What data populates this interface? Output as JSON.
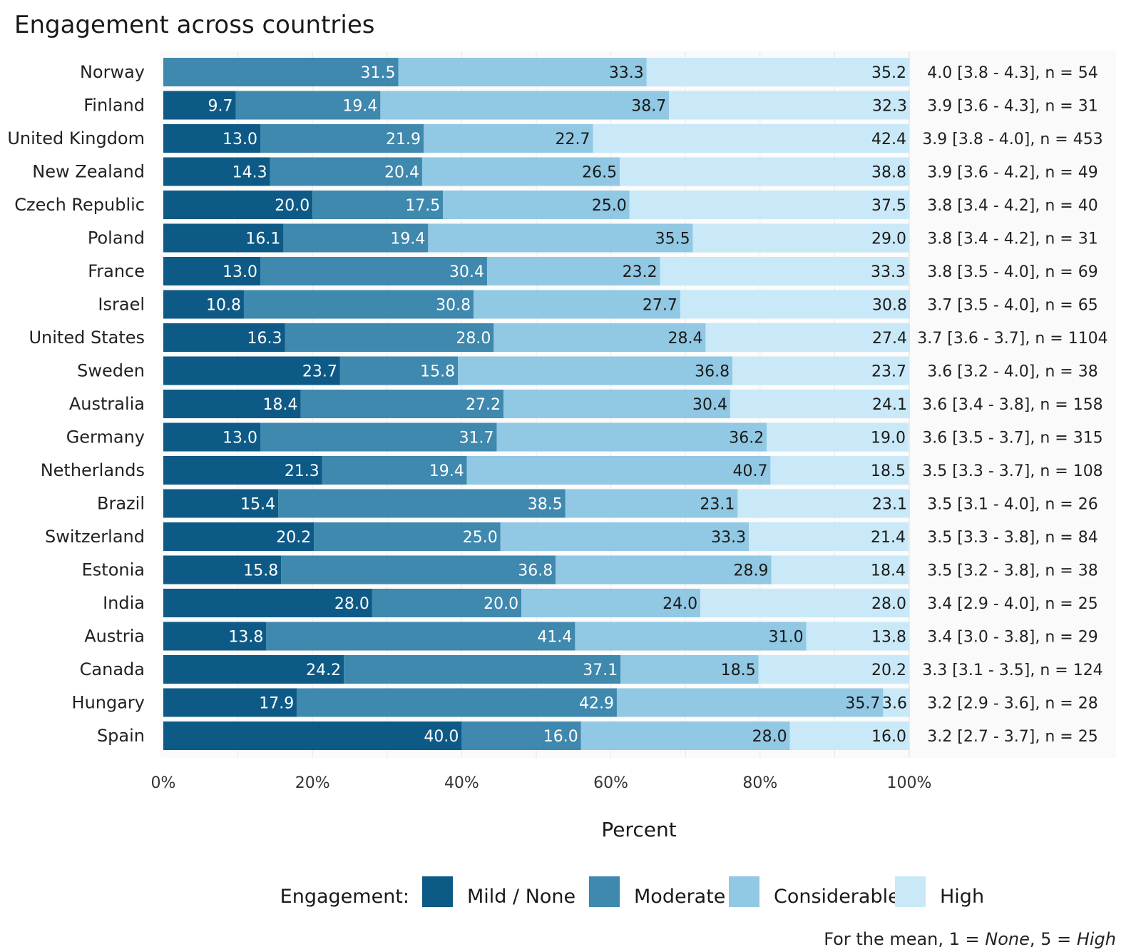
{
  "chart_data": {
    "type": "bar",
    "orientation": "horizontal",
    "stacked": true,
    "title": "Engagement across countries",
    "xlabel": "Percent",
    "ylabel": "",
    "xlim": [
      0,
      100
    ],
    "x_ticks": [
      "0%",
      "20%",
      "40%",
      "60%",
      "80%",
      "100%"
    ],
    "x_tick_values": [
      0,
      20,
      40,
      60,
      80,
      100
    ],
    "categories": [
      "Norway",
      "Finland",
      "United Kingdom",
      "New Zealand",
      "Czech Republic",
      "Poland",
      "France",
      "Israel",
      "United States",
      "Sweden",
      "Australia",
      "Germany",
      "Netherlands",
      "Brazil",
      "Switzerland",
      "Estonia",
      "India",
      "Austria",
      "Canada",
      "Hungary",
      "Spain"
    ],
    "series": [
      {
        "name": "Mild / None",
        "color": "#0e5a86",
        "label_color": "#ffffff",
        "values": [
          0,
          9.7,
          13.0,
          14.3,
          20.0,
          16.1,
          13.0,
          10.8,
          16.3,
          23.7,
          18.4,
          13.0,
          21.3,
          15.4,
          20.2,
          15.8,
          28.0,
          13.8,
          24.2,
          17.9,
          40.0
        ],
        "labels": [
          "",
          "9.7",
          "13.0",
          "14.3",
          "20.0",
          "16.1",
          "13.0",
          "10.8",
          "16.3",
          "23.7",
          "18.4",
          "13.0",
          "21.3",
          "15.4",
          "20.2",
          "15.8",
          "28.0",
          "13.8",
          "24.2",
          "17.9",
          "40.0"
        ]
      },
      {
        "name": "Moderate",
        "color": "#3f88ae",
        "label_color": "#ffffff",
        "values": [
          31.5,
          19.4,
          21.9,
          20.4,
          17.5,
          19.4,
          30.4,
          30.8,
          28.0,
          15.8,
          27.2,
          31.7,
          19.4,
          38.5,
          25.0,
          36.8,
          20.0,
          41.4,
          37.1,
          42.9,
          16.0
        ],
        "labels": [
          "31.5",
          "19.4",
          "21.9",
          "20.4",
          "17.5",
          "19.4",
          "30.4",
          "30.8",
          "28.0",
          "15.8",
          "27.2",
          "31.7",
          "19.4",
          "38.5",
          "25.0",
          "36.8",
          "20.0",
          "41.4",
          "37.1",
          "42.9",
          "16.0"
        ]
      },
      {
        "name": "Considerable",
        "color": "#91c8e3",
        "label_color": "#1a1a1a",
        "values": [
          33.3,
          38.7,
          22.7,
          26.5,
          25.0,
          35.5,
          23.2,
          27.7,
          28.4,
          36.8,
          30.4,
          36.2,
          40.7,
          23.1,
          33.3,
          28.9,
          24.0,
          31.0,
          18.5,
          35.7,
          28.0
        ],
        "labels": [
          "33.3",
          "38.7",
          "22.7",
          "26.5",
          "25.0",
          "35.5",
          "23.2",
          "27.7",
          "28.4",
          "36.8",
          "30.4",
          "36.2",
          "40.7",
          "23.1",
          "33.3",
          "28.9",
          "24.0",
          "31.0",
          "18.5",
          "35.7",
          "28.0"
        ]
      },
      {
        "name": "High",
        "color": "#c9e9f8",
        "label_color": "#1a1a1a",
        "values": [
          35.2,
          32.3,
          42.4,
          38.8,
          37.5,
          29.0,
          33.3,
          30.8,
          27.4,
          23.7,
          24.1,
          19.0,
          18.5,
          23.1,
          21.4,
          18.4,
          28.0,
          13.8,
          20.2,
          3.6,
          16.0
        ],
        "labels": [
          "35.2",
          "32.3",
          "42.4",
          "38.8",
          "37.5",
          "29.0",
          "33.3",
          "30.8",
          "27.4",
          "23.7",
          "24.1",
          "19.0",
          "18.5",
          "23.1",
          "21.4",
          "18.4",
          "28.0",
          "13.8",
          "20.2",
          "3.6",
          "16.0"
        ]
      }
    ],
    "mean_labels": [
      "4.0 [3.8 - 4.3], n = 54",
      "3.9 [3.6 - 4.3], n = 31",
      "3.9 [3.8 - 4.0], n = 453",
      "3.9 [3.6 - 4.2], n = 49",
      "3.8 [3.4 - 4.2], n = 40",
      "3.8 [3.4 - 4.2], n = 31",
      "3.8 [3.5 - 4.0], n = 69",
      "3.7 [3.5 - 4.0], n = 65",
      "3.7 [3.6 - 3.7], n = 1104",
      "3.6 [3.2 - 4.0], n = 38",
      "3.6 [3.4 - 3.8], n = 158",
      "3.6 [3.5 - 3.7], n = 315",
      "3.5 [3.3 - 3.7], n = 108",
      "3.5 [3.1 - 4.0], n = 26",
      "3.5 [3.3 - 3.8], n = 84",
      "3.5 [3.2 - 3.8], n = 38",
      "3.4 [2.9 - 4.0], n = 25",
      "3.4 [3.0 - 3.8], n = 29",
      "3.3 [3.1 - 3.5], n = 124",
      "3.2 [2.9 - 3.6], n = 28",
      "3.2 [2.7 - 3.7], n = 25"
    ],
    "legend": {
      "title": "Engagement:",
      "position": "bottom"
    },
    "grid": true
  },
  "caption": {
    "prefix": "For the mean, 1 = ",
    "none_word": "None",
    "middle": ", 5 = ",
    "high_word": "High"
  }
}
